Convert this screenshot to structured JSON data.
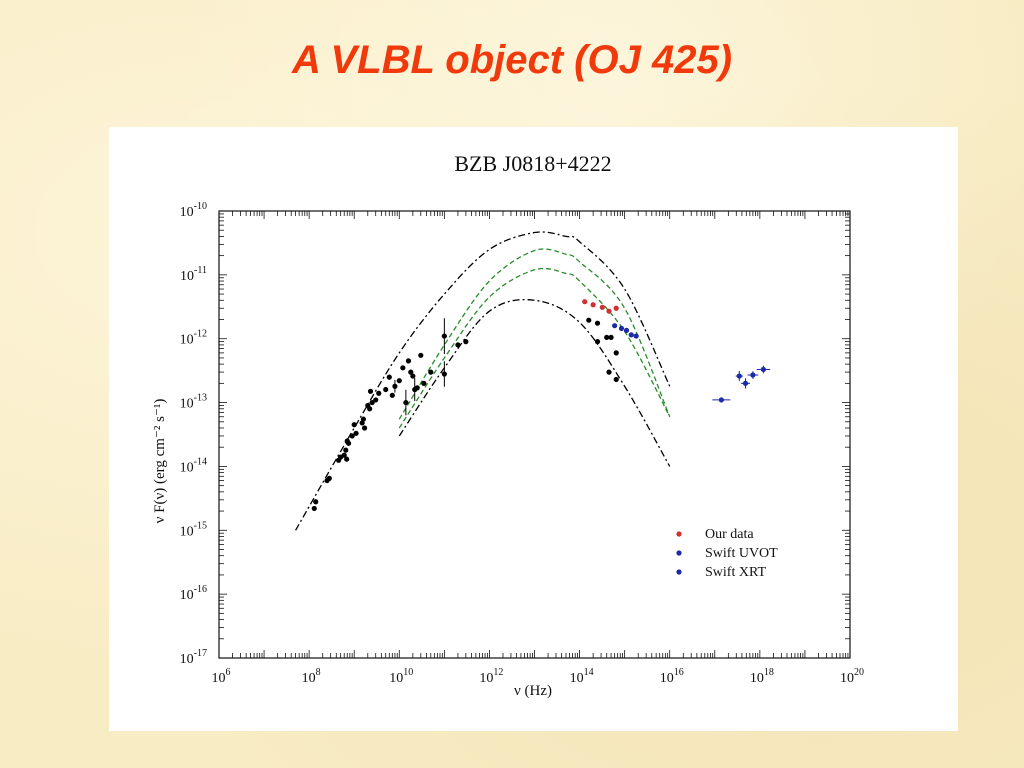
{
  "slide": {
    "title": "A VLBL object  (OJ 425)"
  },
  "colors": {
    "title": "#f03a0c",
    "our_data": "#d03030",
    "swift": "#1a2aa8",
    "archival": "#000000",
    "model_outer": "#000000",
    "model_inner": "#2a8a2a"
  },
  "chart_data": {
    "type": "scatter",
    "title": "BZB J0818+4222",
    "xlabel": "ν (Hz)",
    "ylabel": "ν F(ν)   (erg cm⁻² s⁻¹)",
    "xscale": "log",
    "yscale": "log",
    "xlim": [
      1000000.0,
      1e+20
    ],
    "ylim": [
      1e-17,
      1e-10
    ],
    "x_ticks": [
      {
        "value": 1000000.0,
        "base": "10",
        "exp": "6"
      },
      {
        "value": 100000000.0,
        "base": "10",
        "exp": "8"
      },
      {
        "value": 10000000000.0,
        "base": "10",
        "exp": "10"
      },
      {
        "value": 1000000000000.0,
        "base": "10",
        "exp": "12"
      },
      {
        "value": 100000000000000.0,
        "base": "10",
        "exp": "14"
      },
      {
        "value": 1e+16,
        "base": "10",
        "exp": "16"
      },
      {
        "value": 1e+18,
        "base": "10",
        "exp": "18"
      },
      {
        "value": 1e+20,
        "base": "10",
        "exp": "20"
      }
    ],
    "y_ticks": [
      {
        "value": 1e-10,
        "base": "10",
        "exp": "-10"
      },
      {
        "value": 1e-11,
        "base": "10",
        "exp": "-11"
      },
      {
        "value": 1e-12,
        "base": "10",
        "exp": "-12"
      },
      {
        "value": 1e-13,
        "base": "10",
        "exp": "-13"
      },
      {
        "value": 1e-14,
        "base": "10",
        "exp": "-14"
      },
      {
        "value": 1e-15,
        "base": "10",
        "exp": "-15"
      },
      {
        "value": 1e-16,
        "base": "10",
        "exp": "-16"
      },
      {
        "value": 1e-17,
        "base": "10",
        "exp": "-17"
      }
    ],
    "legend_position": "bottom-right",
    "legend": [
      {
        "name": "Our data",
        "color": "#d03030"
      },
      {
        "name": "Swift UVOT",
        "color": "#1a2aa8"
      },
      {
        "name": "Swift XRT",
        "color": "#1a2aa8"
      }
    ],
    "series": [
      {
        "name": "Our data",
        "color": "#d03030",
        "points": [
          [
            130000000000000.0,
            3.8e-12
          ],
          [
            200000000000000.0,
            3.4e-12
          ],
          [
            320000000000000.0,
            3.1e-12
          ],
          [
            450000000000000.0,
            2.7e-12
          ],
          [
            650000000000000.0,
            3e-12
          ]
        ]
      },
      {
        "name": "Swift UVOT",
        "color": "#1a2aa8",
        "points": [
          [
            600000000000000.0,
            1.6e-12
          ],
          [
            850000000000000.0,
            1.45e-12
          ],
          [
            1100000000000000.0,
            1.35e-12
          ],
          [
            1400000000000000.0,
            1.15e-12
          ],
          [
            1800000000000000.0,
            1.1e-12
          ]
        ]
      },
      {
        "name": "Swift XRT",
        "color": "#1a2aa8",
        "points": [
          [
            1.4e+17,
            1.1e-13
          ],
          [
            3.5e+17,
            2.6e-13
          ],
          [
            4.8e+17,
            2e-13
          ],
          [
            7e+17,
            2.7e-13
          ],
          [
            1.2e+18,
            3.3e-13
          ]
        ],
        "xerr_dex": [
          0.2,
          0.08,
          0.1,
          0.12,
          0.15
        ],
        "yerr_dex": [
          0.04,
          0.08,
          0.08,
          0.06,
          0.06
        ]
      },
      {
        "name": "Archival",
        "color": "#000000",
        "points": [
          [
            130000000.0,
            2.2e-15
          ],
          [
            140000000.0,
            2.8e-15
          ],
          [
            250000000.0,
            6e-15
          ],
          [
            280000000.0,
            6.5e-15
          ],
          [
            450000000.0,
            1.25e-14
          ],
          [
            500000000.0,
            1.4e-14
          ],
          [
            600000000.0,
            1.5e-14
          ],
          [
            650000000.0,
            1.8e-14
          ],
          [
            680000000.0,
            1.3e-14
          ],
          [
            700000000.0,
            2.5e-14
          ],
          [
            750000000.0,
            2.3e-14
          ],
          [
            900000000.0,
            3e-14
          ],
          [
            1000000000.0,
            4.5e-14
          ],
          [
            1100000000.0,
            3.3e-14
          ],
          [
            1500000000.0,
            4.8e-14
          ],
          [
            1600000000.0,
            5.5e-14
          ],
          [
            1700000000.0,
            4e-14
          ],
          [
            2000000000.0,
            9e-14
          ],
          [
            2200000000.0,
            8e-14
          ],
          [
            2300000000.0,
            1.5e-13
          ],
          [
            2500000000.0,
            1e-13
          ],
          [
            3000000000.0,
            1.1e-13
          ],
          [
            3500000000.0,
            1.4e-13
          ],
          [
            5000000000.0,
            1.6e-13
          ],
          [
            6000000000.0,
            2.5e-13
          ],
          [
            7000000000.0,
            1.3e-13
          ],
          [
            8000000000.0,
            1.8e-13
          ],
          [
            10000000000.0,
            2.2e-13
          ],
          [
            12000000000.0,
            3.5e-13
          ],
          [
            14000000000.0,
            1e-13
          ],
          [
            16000000000.0,
            4.5e-13
          ],
          [
            18000000000.0,
            3e-13
          ],
          [
            20000000000.0,
            2.6e-13
          ],
          [
            22000000000.0,
            1.6e-13
          ],
          [
            25000000000.0,
            1.7e-13
          ],
          [
            30000000000.0,
            5.5e-13
          ],
          [
            35000000000.0,
            2e-13
          ],
          [
            50000000000.0,
            3e-13
          ],
          [
            100000000000.0,
            1.1e-12
          ],
          [
            100000000000.0,
            2.8e-13
          ],
          [
            200000000000.0,
            8e-13
          ],
          [
            300000000000.0,
            9e-13
          ],
          [
            160000000000000.0,
            1.95e-12
          ],
          [
            250000000000000.0,
            1.75e-12
          ],
          [
            400000000000000.0,
            1.05e-12
          ],
          [
            500000000000000.0,
            1.05e-12
          ],
          [
            650000000000000.0,
            6e-13
          ],
          [
            250000000000000.0,
            9e-13
          ],
          [
            450000000000000.0,
            3e-13
          ],
          [
            650000000000000.0,
            2.3e-13
          ]
        ],
        "yerr_dex": {
          "26": 0.1,
          "38": 0.28,
          "39": 0.2,
          "29": 0.2,
          "33": 0.18
        }
      }
    ],
    "models": [
      {
        "name": "outer-upper",
        "style": "dash-dot",
        "color": "#000000",
        "x": [
          50000000.0,
          1000000000.0,
          10000000000.0,
          100000000000.0,
          1000000000000.0,
          10000000000000.0,
          50000000000000.0,
          100000000000000.0,
          1000000000000000.0,
          1e+16
        ],
        "y": [
          1e-15,
          4e-14,
          6e-13,
          5e-12,
          2.5e-11,
          4.6e-11,
          4e-11,
          3.3e-11,
          6e-12,
          1.8e-13
        ]
      },
      {
        "name": "inner-upper",
        "style": "dashed",
        "color": "#2a8a2a",
        "x": [
          10000000000.0,
          100000000000.0,
          1000000000000.0,
          10000000000000.0,
          50000000000000.0,
          100000000000000.0,
          1000000000000000.0,
          1e+16
        ],
        "y": [
          5.5e-14,
          8e-13,
          8e-12,
          2.4e-11,
          2.1e-11,
          1.6e-11,
          3e-12,
          6e-14
        ]
      },
      {
        "name": "inner-lower",
        "style": "dashed",
        "color": "#2a8a2a",
        "x": [
          10000000000.0,
          100000000000.0,
          1000000000000.0,
          10000000000000.0,
          50000000000000.0,
          100000000000000.0,
          1000000000000000.0,
          1e+16
        ],
        "y": [
          4e-14,
          5e-13,
          4.5e-12,
          1.2e-11,
          1.05e-11,
          8e-12,
          1.3e-12,
          6e-14
        ]
      },
      {
        "name": "outer-lower",
        "style": "dash-dot",
        "color": "#000000",
        "x": [
          10000000000.0,
          100000000000.0,
          1000000000000.0,
          10000000000000.0,
          100000000000000.0,
          1000000000000000.0,
          1e+16
        ],
        "y": [
          3e-14,
          3.5e-13,
          2.7e-12,
          4e-12,
          1.8e-12,
          1.8e-13,
          1e-14
        ]
      }
    ]
  }
}
